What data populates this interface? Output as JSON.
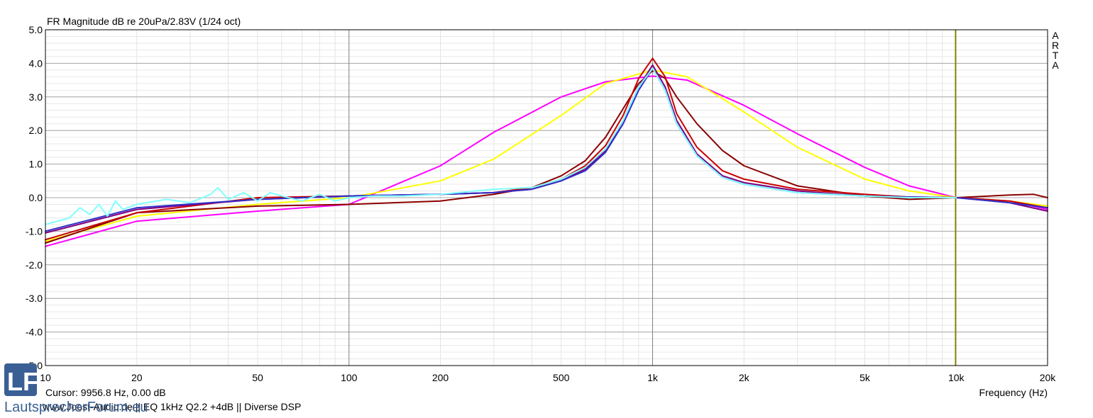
{
  "header": {
    "title": "FR Magnitude dB re 20uPa/2.83V (1/24 oct)",
    "brand_vertical": "ARTA"
  },
  "status": {
    "cursor_text": "Cursor: 9956.8 Hz, 0.00 dB",
    "footer_text": "www.Joost-Audio.de  ||  EQ  1kHz  Q2.2  +4dB  ||  Diverse DSP"
  },
  "logo": {
    "letters": "LF",
    "text": "LautsprecherForum.eu"
  },
  "chart_data": {
    "type": "line",
    "title": "FR Magnitude dB re 20uPa/2.83V (1/24 oct)",
    "xlabel": "Frequency (Hz)",
    "ylabel": "",
    "x_scale": "log",
    "xlim": [
      10,
      20000
    ],
    "ylim": [
      -5.0,
      5.0
    ],
    "grid": true,
    "x_ticks": [
      10,
      20,
      50,
      100,
      200,
      500,
      1000,
      2000,
      5000,
      10000,
      20000
    ],
    "x_tick_labels": [
      "10",
      "20",
      "50",
      "100",
      "200",
      "500",
      "1k",
      "2k",
      "5k",
      "10k",
      "20k"
    ],
    "y_ticks": [
      5,
      4,
      3,
      2,
      1,
      0,
      -1,
      -2,
      -3,
      -4,
      -5
    ],
    "y_tick_labels": [
      "5.0",
      "4.0",
      "3.0",
      "2.0",
      "1.0",
      "0.0",
      "-1.0",
      "-2.0",
      "-3.0",
      "-4.0",
      "-5.0"
    ],
    "cursor": {
      "x": 9956.8,
      "y": 0.0
    },
    "series": [
      {
        "color": "#ff00ff",
        "x": [
          10,
          20,
          50,
          100,
          200,
          300,
          500,
          700,
          1000,
          1300,
          2000,
          3000,
          5000,
          7000,
          10000,
          15000,
          20000
        ],
        "y": [
          -1.45,
          -0.7,
          -0.4,
          -0.2,
          0.95,
          1.95,
          3.0,
          3.45,
          3.62,
          3.5,
          2.75,
          1.9,
          0.9,
          0.35,
          0.0,
          -0.1,
          -0.35
        ]
      },
      {
        "color": "#ffff00",
        "x": [
          10,
          20,
          50,
          100,
          200,
          300,
          500,
          700,
          1000,
          1300,
          2000,
          3000,
          5000,
          7000,
          10000,
          15000,
          20000
        ],
        "y": [
          -1.3,
          -0.55,
          -0.2,
          0.0,
          0.5,
          1.15,
          2.45,
          3.4,
          3.8,
          3.6,
          2.55,
          1.5,
          0.55,
          0.2,
          0.0,
          -0.1,
          -0.25
        ]
      },
      {
        "color": "#8b0000",
        "x": [
          10,
          20,
          50,
          100,
          200,
          300,
          400,
          500,
          600,
          700,
          800,
          900,
          1000,
          1100,
          1200,
          1400,
          1700,
          2000,
          3000,
          5000,
          7000,
          10000,
          15000,
          18000,
          20000
        ],
        "y": [
          -1.35,
          -0.45,
          -0.25,
          -0.2,
          -0.1,
          0.1,
          0.3,
          0.65,
          1.1,
          1.8,
          2.65,
          3.4,
          3.78,
          3.55,
          3.0,
          2.2,
          1.4,
          0.95,
          0.35,
          0.05,
          -0.05,
          0.0,
          0.08,
          0.1,
          0.0
        ]
      },
      {
        "color": "#c80000",
        "x": [
          10,
          20,
          50,
          100,
          200,
          300,
          400,
          500,
          600,
          700,
          800,
          900,
          1000,
          1100,
          1200,
          1400,
          1700,
          2000,
          3000,
          5000,
          7000,
          10000,
          15000,
          20000
        ],
        "y": [
          -1.25,
          -0.45,
          0.0,
          0.05,
          0.1,
          0.15,
          0.3,
          0.55,
          0.95,
          1.55,
          2.45,
          3.55,
          4.15,
          3.6,
          2.5,
          1.5,
          0.8,
          0.55,
          0.25,
          0.1,
          0.02,
          0.0,
          -0.1,
          -0.3
        ]
      },
      {
        "color": "#800080",
        "x": [
          10,
          20,
          50,
          100,
          200,
          300,
          400,
          500,
          600,
          700,
          800,
          900,
          1000,
          1100,
          1200,
          1400,
          1700,
          2000,
          3000,
          5000,
          7000,
          10000,
          15000,
          20000
        ],
        "y": [
          -1.05,
          -0.35,
          -0.05,
          0.05,
          0.1,
          0.15,
          0.25,
          0.5,
          0.85,
          1.4,
          2.3,
          3.3,
          3.95,
          3.3,
          2.3,
          1.3,
          0.65,
          0.45,
          0.2,
          0.05,
          0.02,
          0.0,
          -0.15,
          -0.4
        ]
      },
      {
        "color": "#3030c8",
        "x": [
          10,
          20,
          50,
          100,
          200,
          300,
          400,
          500,
          600,
          700,
          800,
          900,
          1000,
          1100,
          1200,
          1400,
          1700,
          2000,
          3000,
          5000,
          7000,
          10000,
          15000,
          20000
        ],
        "y": [
          -1.0,
          -0.3,
          -0.05,
          0.05,
          0.1,
          0.15,
          0.25,
          0.5,
          0.8,
          1.35,
          2.2,
          3.2,
          3.85,
          3.2,
          2.2,
          1.25,
          0.6,
          0.4,
          0.15,
          0.05,
          0.02,
          0.0,
          -0.15,
          -0.3
        ]
      },
      {
        "color": "#7fffff",
        "x": [
          10,
          12,
          13,
          14,
          15,
          16,
          17,
          18,
          20,
          25,
          30,
          35,
          37,
          40,
          45,
          50,
          55,
          60,
          70,
          80,
          90,
          100,
          120,
          150,
          200,
          300,
          400,
          500,
          600,
          700,
          800,
          900,
          1000,
          1100,
          1200,
          1400,
          1700,
          2000,
          3000,
          5000,
          7000,
          10000
        ],
        "y": [
          -0.8,
          -0.6,
          -0.3,
          -0.5,
          -0.2,
          -0.55,
          -0.1,
          -0.35,
          -0.2,
          -0.05,
          -0.15,
          0.1,
          0.3,
          -0.05,
          0.15,
          -0.1,
          0.15,
          0.05,
          -0.1,
          0.1,
          -0.1,
          0.0,
          0.05,
          0.05,
          0.1,
          0.25,
          0.3,
          0.55,
          0.9,
          1.45,
          2.3,
          3.3,
          3.85,
          3.2,
          2.2,
          1.25,
          0.6,
          0.4,
          0.15,
          0.05,
          0.0,
          0.0
        ]
      }
    ]
  }
}
